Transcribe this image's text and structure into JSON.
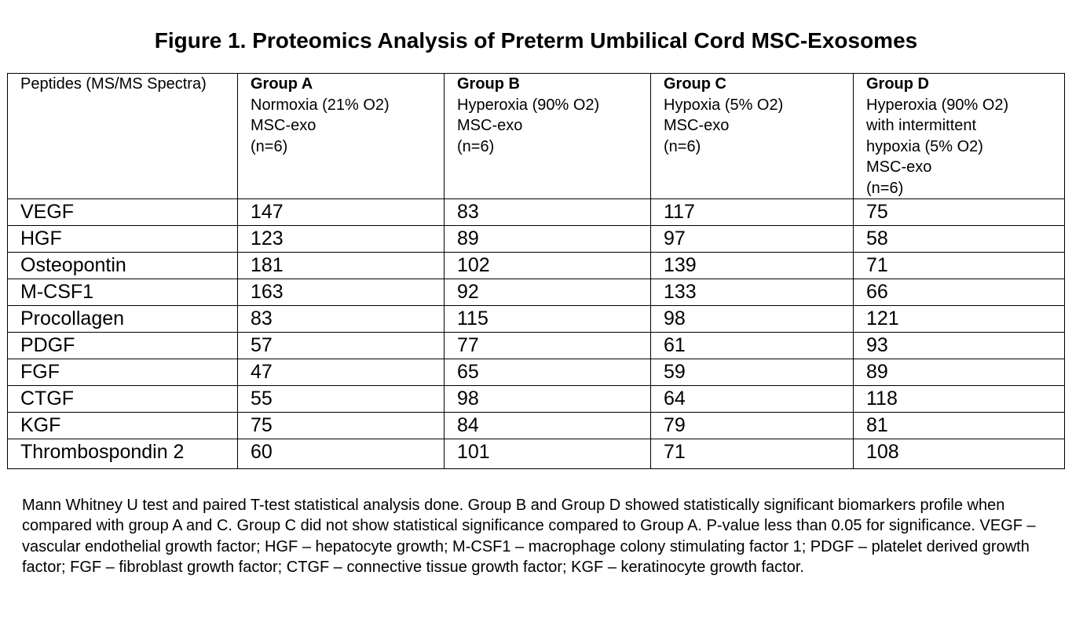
{
  "title": "Figure 1. Proteomics Analysis of Preterm Umbilical Cord MSC-Exosomes",
  "table": {
    "corner_header": "Peptides (MS/MS Spectra)",
    "groups": [
      {
        "name": "Group A",
        "lines": [
          "Normoxia (21% O2)",
          "MSC-exo",
          "(n=6)"
        ]
      },
      {
        "name": "Group B",
        "lines": [
          "Hyperoxia (90% O2)",
          "MSC-exo",
          "(n=6)"
        ]
      },
      {
        "name": "Group C",
        "lines": [
          "Hypoxia (5% O2)",
          "MSC-exo",
          "(n=6)"
        ]
      },
      {
        "name": "Group D",
        "lines": [
          "Hyperoxia (90% O2)",
          "with intermittent",
          "hypoxia (5% O2)",
          "MSC-exo",
          "(n=6)"
        ]
      }
    ],
    "rows": [
      {
        "peptide": "VEGF",
        "values": [
          "147",
          "83",
          "117",
          "75"
        ]
      },
      {
        "peptide": "HGF",
        "values": [
          "123",
          "89",
          "97",
          "58"
        ]
      },
      {
        "peptide": "Osteopontin",
        "values": [
          "181",
          "102",
          "139",
          "71"
        ]
      },
      {
        "peptide": "M-CSF1",
        "values": [
          "163",
          "92",
          "133",
          "66"
        ]
      },
      {
        "peptide": "Procollagen",
        "values": [
          "83",
          "115",
          "98",
          "121"
        ]
      },
      {
        "peptide": "PDGF",
        "values": [
          "57",
          "77",
          "61",
          "93"
        ]
      },
      {
        "peptide": "FGF",
        "values": [
          "47",
          "65",
          "59",
          "89"
        ]
      },
      {
        "peptide": "CTGF",
        "values": [
          "55",
          "98",
          "64",
          "118"
        ]
      },
      {
        "peptide": "KGF",
        "values": [
          "75",
          "84",
          "79",
          "81"
        ]
      },
      {
        "peptide": "Thrombospondin 2",
        "values": [
          "60",
          "101",
          "71",
          "108"
        ]
      }
    ]
  },
  "footnote": "Mann Whitney U test and paired T-test statistical analysis done. Group B and Group D showed statistically significant biomarkers profile when compared with group A and C. Group C did not show statistical significance compared to Group A. P-value less than 0.05 for significance. VEGF – vascular endothelial growth factor; HGF – hepatocyte growth; M-CSF1 – macrophage colony stimulating factor 1; PDGF – platelet derived growth factor; FGF – fibroblast growth factor; CTGF – connective tissue growth factor; KGF – keratinocyte growth factor."
}
